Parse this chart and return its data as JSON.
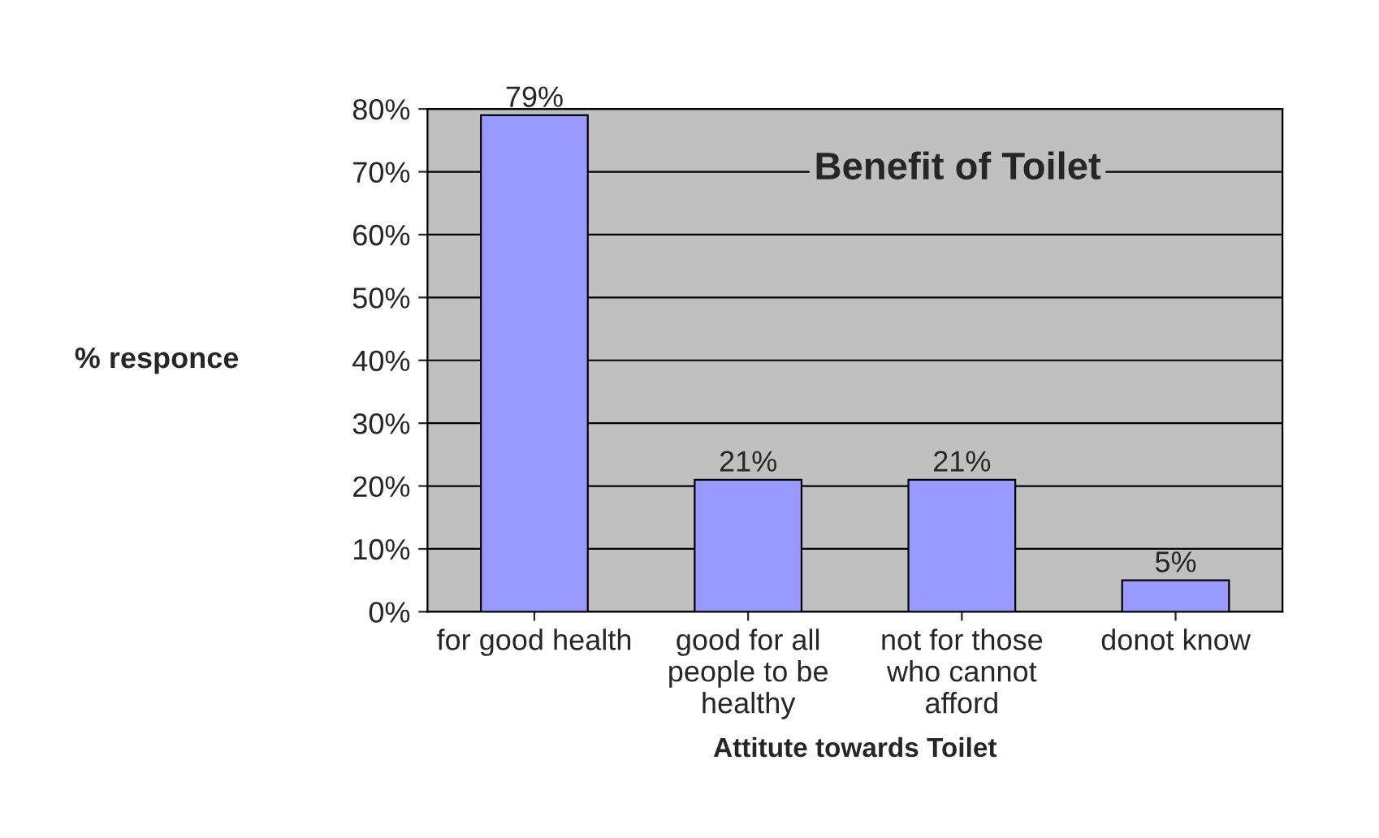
{
  "chart_data": {
    "type": "bar",
    "title": "Benefit of Toilet",
    "xlabel": "Attitute towards Toilet",
    "ylabel": "% responce",
    "categories": [
      "for good health",
      "good for all\npeople to be\nhealthy",
      "not for those\nwho cannot\nafford",
      "donot know"
    ],
    "values": [
      79,
      21,
      21,
      5
    ],
    "color": "#9999ff",
    "value_labels": [
      "79%",
      "21%",
      "21%",
      "5%"
    ],
    "ylim": [
      0,
      80
    ],
    "yticks": [
      {
        "value": 0,
        "label": "0%"
      },
      {
        "value": 10,
        "label": "10%"
      },
      {
        "value": 20,
        "label": "20%"
      },
      {
        "value": 30,
        "label": "30%"
      },
      {
        "value": 40,
        "label": "40%"
      },
      {
        "value": 50,
        "label": "50%"
      },
      {
        "value": 60,
        "label": "60%"
      },
      {
        "value": 70,
        "label": "70%"
      },
      {
        "value": 80,
        "label": "80%"
      }
    ],
    "grid": "y"
  }
}
